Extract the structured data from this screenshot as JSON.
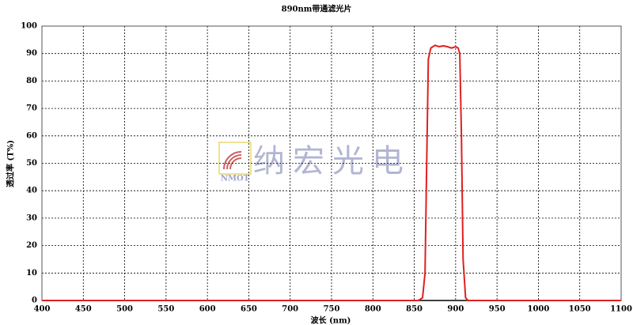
{
  "chart_data": {
    "type": "line",
    "title": "890nm带通滤光片",
    "x_label": "波长 (nm)",
    "y_label": "透过率 (T%)",
    "watermark": "纳宏光电",
    "watermark_logo": "NMOT",
    "series": [
      {
        "name": "890nm",
        "color": "#e02020",
        "x": [
          400,
          855,
          860,
          863,
          865,
          867,
          870,
          875,
          880,
          885,
          890,
          895,
          900,
          903,
          905,
          907,
          909,
          912,
          915,
          1100
        ],
        "values": [
          0,
          0,
          1,
          10,
          50,
          88,
          92,
          93,
          92.5,
          92.8,
          92.5,
          92,
          92.5,
          92,
          90,
          60,
          15,
          1,
          0,
          0
        ]
      }
    ],
    "xlim": [
      400,
      1100
    ],
    "xticks": [
      400,
      450,
      500,
      550,
      600,
      650,
      700,
      750,
      800,
      850,
      900,
      950,
      1000,
      1050,
      1100
    ],
    "ylim": [
      0,
      100
    ],
    "yticks": [
      0,
      10,
      20,
      30,
      40,
      50,
      60,
      70,
      80,
      90,
      100
    ],
    "grid": true
  }
}
